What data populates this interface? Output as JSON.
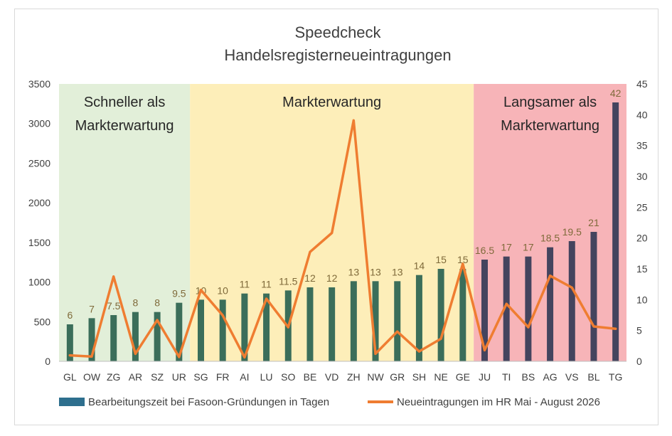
{
  "chart_data": {
    "type": "bar",
    "title": "Speedcheck",
    "subtitle": "Handelsregisterneueintragungen",
    "xlabel": "",
    "ylabel": "",
    "categories": [
      "GL",
      "OW",
      "ZG",
      "AR",
      "SZ",
      "UR",
      "SG",
      "FR",
      "AI",
      "LU",
      "SO",
      "BE",
      "VD",
      "ZH",
      "NW",
      "GR",
      "SH",
      "NE",
      "GE",
      "JU",
      "TI",
      "BS",
      "AG",
      "VS",
      "BL",
      "TG"
    ],
    "bar_labels": [
      "6",
      "7",
      "7.5",
      "8",
      "8",
      "9.5",
      "10",
      "10",
      "11",
      "11",
      "11.5",
      "12",
      "12",
      "13",
      "13",
      "13",
      "14",
      "15",
      "15",
      "16.5",
      "17",
      "17",
      "18.5",
      "19.5",
      "21",
      "42"
    ],
    "series": [
      {
        "name": "Bearbeitungszeit bei Fasoon-Gründungen in Tagen",
        "chart_type": "bar",
        "axis": "right",
        "values": [
          6,
          7,
          7.5,
          8,
          8,
          9.5,
          10,
          10,
          11,
          11,
          11.5,
          12,
          12,
          13,
          13,
          13,
          14,
          15,
          15,
          16.5,
          17,
          17,
          18.5,
          19.5,
          21,
          42
        ],
        "color": "#3b6e5a",
        "color_slow": "#44445e"
      },
      {
        "name": "Neueintragungen im HR Mai - August 2026",
        "chart_type": "line",
        "axis": "left",
        "values": [
          75,
          60,
          1070,
          95,
          520,
          55,
          900,
          580,
          50,
          790,
          430,
          1380,
          1620,
          3040,
          95,
          375,
          125,
          285,
          1230,
          140,
          725,
          430,
          1080,
          930,
          440,
          410
        ],
        "color": "#ef7d31"
      }
    ],
    "y_left": {
      "ylim": [
        0,
        3500
      ],
      "ticks": [
        "0",
        "500",
        "1000",
        "1500",
        "2000",
        "2500",
        "3000",
        "3500"
      ]
    },
    "y_right": {
      "ylim": [
        0,
        45
      ],
      "ticks": [
        "0",
        "5",
        "10",
        "15",
        "20",
        "25",
        "30",
        "35",
        "40",
        "45"
      ]
    },
    "zones": [
      {
        "label_lines": [
          "Schneller als",
          "Markterwartung"
        ],
        "color": "#e2efd9",
        "from": "GL",
        "to": "UR"
      },
      {
        "label_lines": [
          "Markterwartung"
        ],
        "color": "#fdeeb9",
        "from": "SG",
        "to": "GE"
      },
      {
        "label_lines": [
          "Langsamer als",
          "Markterwartung"
        ],
        "color": "#f7b4b8",
        "from": "JU",
        "to": "TG"
      }
    ],
    "legend_placement": "bottom",
    "grid": false
  }
}
